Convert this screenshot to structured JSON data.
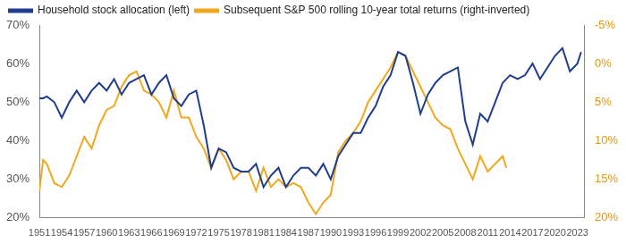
{
  "chart_data": {
    "type": "line",
    "x": [
      1951,
      1951.5,
      1952,
      1953,
      1954,
      1955,
      1956,
      1957,
      1958,
      1959,
      1960,
      1961,
      1962,
      1963,
      1964,
      1965,
      1966,
      1967,
      1968,
      1969,
      1970,
      1971,
      1972,
      1973,
      1974,
      1975,
      1976,
      1977,
      1978,
      1979,
      1980,
      1981,
      1982,
      1983,
      1984,
      1985,
      1986,
      1987,
      1988,
      1989,
      1990,
      1991,
      1992,
      1993,
      1994,
      1995,
      1996,
      1997,
      1998,
      1999,
      2000,
      2001,
      2002,
      2003,
      2004,
      2005,
      2006,
      2007,
      2008,
      2009,
      2010,
      2011,
      2012,
      2013,
      2013.5,
      2014,
      2015,
      2016,
      2017,
      2018,
      2019,
      2020,
      2021,
      2022,
      2023,
      2023.5
    ],
    "series": [
      {
        "name": "Household stock allocation (left)",
        "color": "#1f3d8c",
        "values": [
          51,
          51,
          51.5,
          50,
          46,
          50,
          53,
          50,
          53,
          55,
          53,
          56,
          52,
          55,
          56,
          57,
          52,
          55,
          57,
          51,
          49,
          52,
          53,
          44,
          33,
          38,
          37,
          33,
          32,
          32,
          34,
          28,
          31,
          33,
          28,
          31,
          33,
          33,
          31,
          34,
          30,
          36,
          39,
          42,
          42,
          46,
          49,
          54,
          57,
          63,
          62,
          55,
          47,
          52,
          55,
          57,
          58,
          59,
          45,
          39,
          47,
          45,
          50,
          55,
          56,
          57,
          56,
          57,
          60,
          56,
          59,
          62,
          64,
          58,
          60,
          63
        ]
      },
      {
        "name": "Subsequent S&P 500 rolling 10-year total returns (right-inverted)",
        "color": "#f0a81c",
        "axis": "y2",
        "values": [
          16.5,
          12.5,
          13,
          15.5,
          16,
          14.5,
          12,
          9.5,
          11,
          8,
          6,
          5.5,
          3,
          1.5,
          1,
          3.5,
          4,
          5,
          7,
          3.5,
          7,
          7,
          9.5,
          11,
          13.5,
          11,
          12.5,
          15,
          14,
          14,
          16.5,
          13.5,
          16,
          15,
          16,
          15.5,
          16,
          18,
          19.5,
          18,
          17,
          11.5,
          10,
          9,
          7.5,
          5,
          3.5,
          2,
          0.5,
          -1.5,
          -1,
          1,
          3,
          5,
          7,
          8,
          8.5,
          11,
          13,
          15,
          12,
          14,
          13,
          12,
          13.5,
          null,
          null,
          null,
          null,
          null,
          null,
          null,
          null,
          null,
          null,
          null
        ]
      }
    ],
    "xlim": [
      1951,
      2024
    ],
    "xticks": [
      1951,
      1954,
      1957,
      1960,
      1963,
      1966,
      1969,
      1972,
      1975,
      1978,
      1981,
      1984,
      1987,
      1990,
      1993,
      1996,
      1999,
      2002,
      2005,
      2008,
      2011,
      2014,
      2017,
      2020,
      2023
    ],
    "ylim": [
      20,
      70
    ],
    "yticks": [
      {
        "value": 20,
        "label": "20%"
      },
      {
        "value": 30,
        "label": "30%"
      },
      {
        "value": 40,
        "label": "40%"
      },
      {
        "value": 50,
        "label": "50%"
      },
      {
        "value": 60,
        "label": "60%"
      },
      {
        "value": 70,
        "label": "70%"
      }
    ],
    "y2lim": [
      20,
      -5
    ],
    "y2ticks": [
      {
        "value": -5,
        "label": "-5%"
      },
      {
        "value": 0,
        "label": "0%"
      },
      {
        "value": 5,
        "label": "5%"
      },
      {
        "value": 10,
        "label": "10%"
      },
      {
        "value": 15,
        "label": "15%"
      },
      {
        "value": 20,
        "label": "20%"
      }
    ],
    "grid": false,
    "legend": "top-left"
  }
}
